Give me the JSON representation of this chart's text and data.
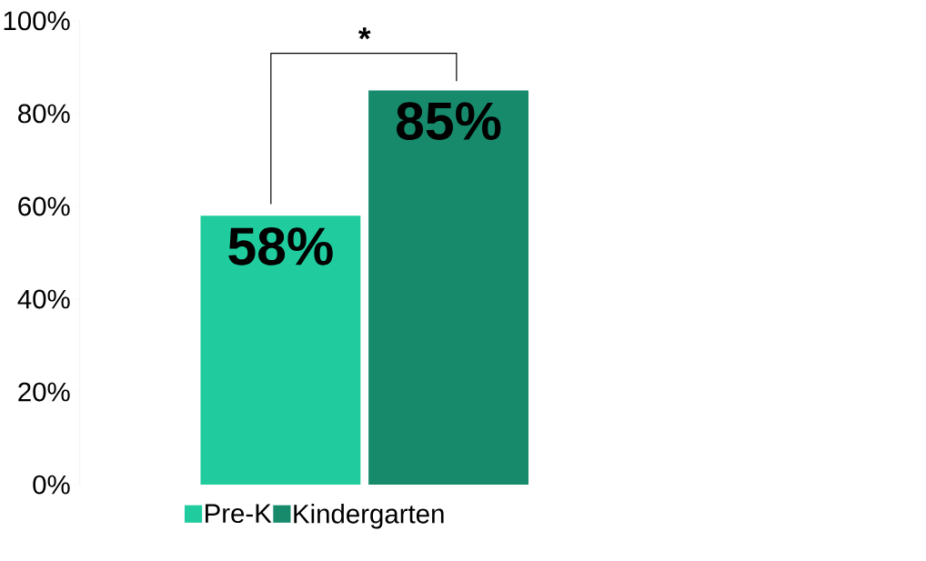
{
  "chart_data": {
    "type": "bar",
    "categories": [
      null
    ],
    "series": [
      {
        "name": "Pre-K",
        "color": "#20cc9e",
        "values": [
          58
        ],
        "value_labels": [
          "58%"
        ]
      },
      {
        "name": "Kindergarten",
        "color": "#178a6c",
        "values": [
          85
        ],
        "value_labels": [
          "85%"
        ]
      }
    ],
    "ylim": [
      0,
      100
    ],
    "yticks": [
      {
        "value": 0,
        "label": "0%"
      },
      {
        "value": 20,
        "label": "20%"
      },
      {
        "value": 40,
        "label": "40%"
      },
      {
        "value": 60,
        "label": "60%"
      },
      {
        "value": 80,
        "label": "80%"
      },
      {
        "value": 100,
        "label": "100%"
      }
    ],
    "annotations": [
      "*"
    ],
    "legend": "bottom",
    "grid": false
  }
}
